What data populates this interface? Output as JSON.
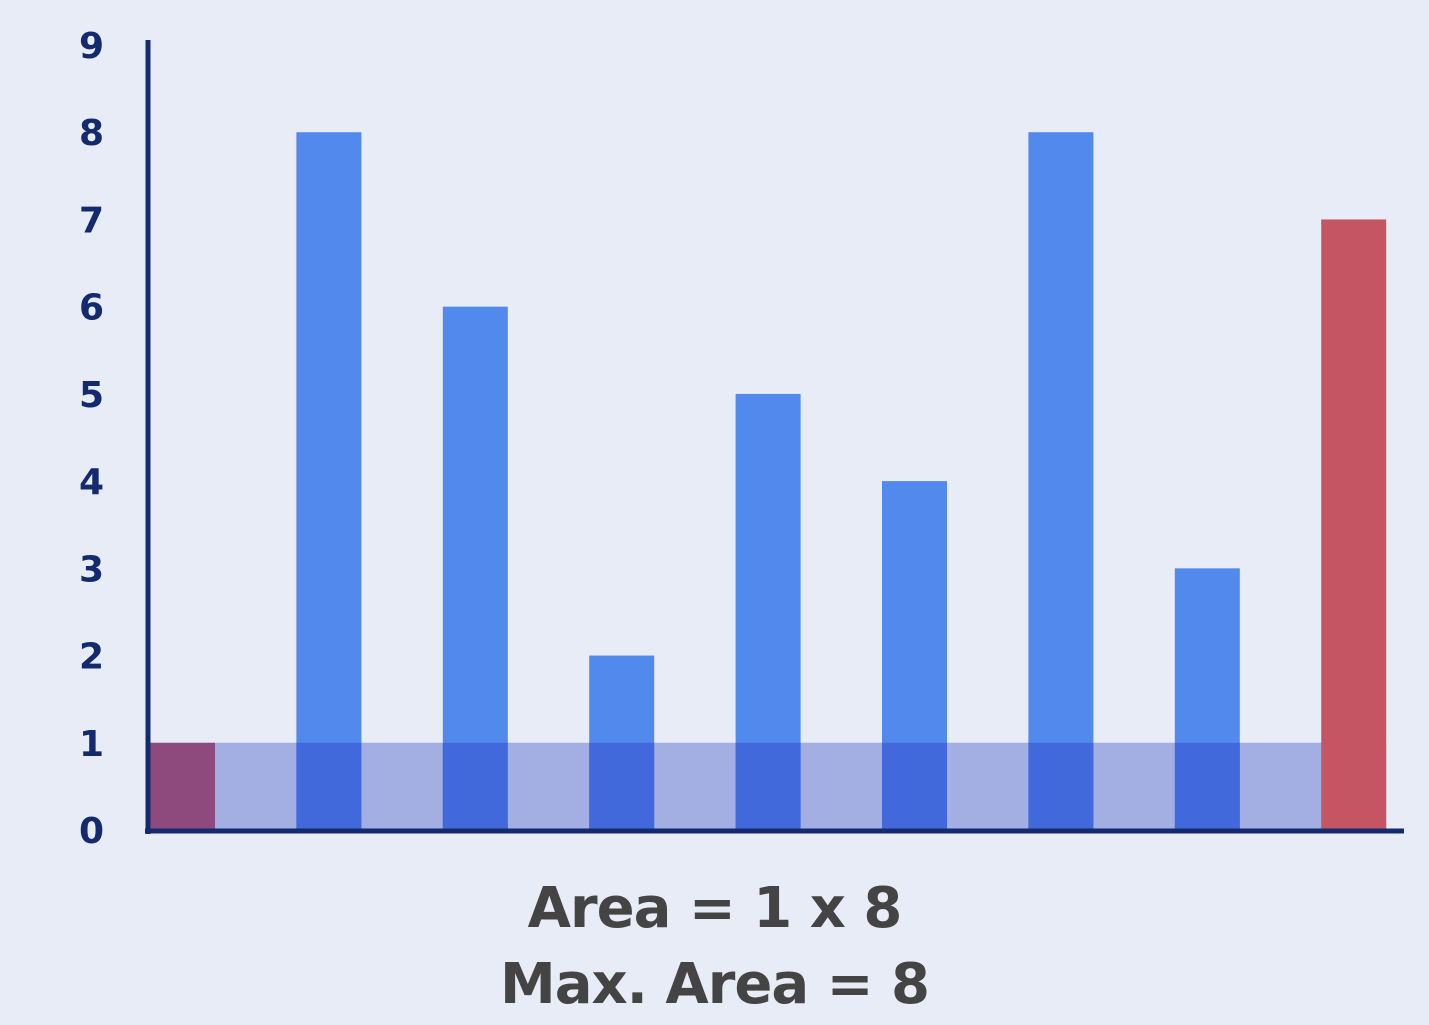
{
  "chart_data": {
    "type": "bar",
    "categories": [
      "",
      "",
      "",
      "",
      "",
      "",
      "",
      "",
      ""
    ],
    "values": [
      1,
      8,
      6,
      2,
      5,
      4,
      8,
      3,
      7
    ],
    "highlight": {
      "left_index": 0,
      "right_index": 8,
      "water_level": 1
    },
    "ylim": [
      0,
      9
    ],
    "yticks": [
      "0",
      "1",
      "2",
      "3",
      "4",
      "5",
      "6",
      "7",
      "8",
      "9"
    ],
    "grid": false,
    "colors": {
      "bar": "#5289ec",
      "bar_overlap": "#4169dc",
      "left_bound": "#8e4a7c",
      "right_bound": "#c55562",
      "water": "#a3aee2",
      "axis": "#142a6e",
      "tick_text": "#142a6e",
      "caption_text": "#444444"
    }
  },
  "caption": {
    "line1": "Area = 1 x 8",
    "line2": "Max. Area = 8"
  }
}
